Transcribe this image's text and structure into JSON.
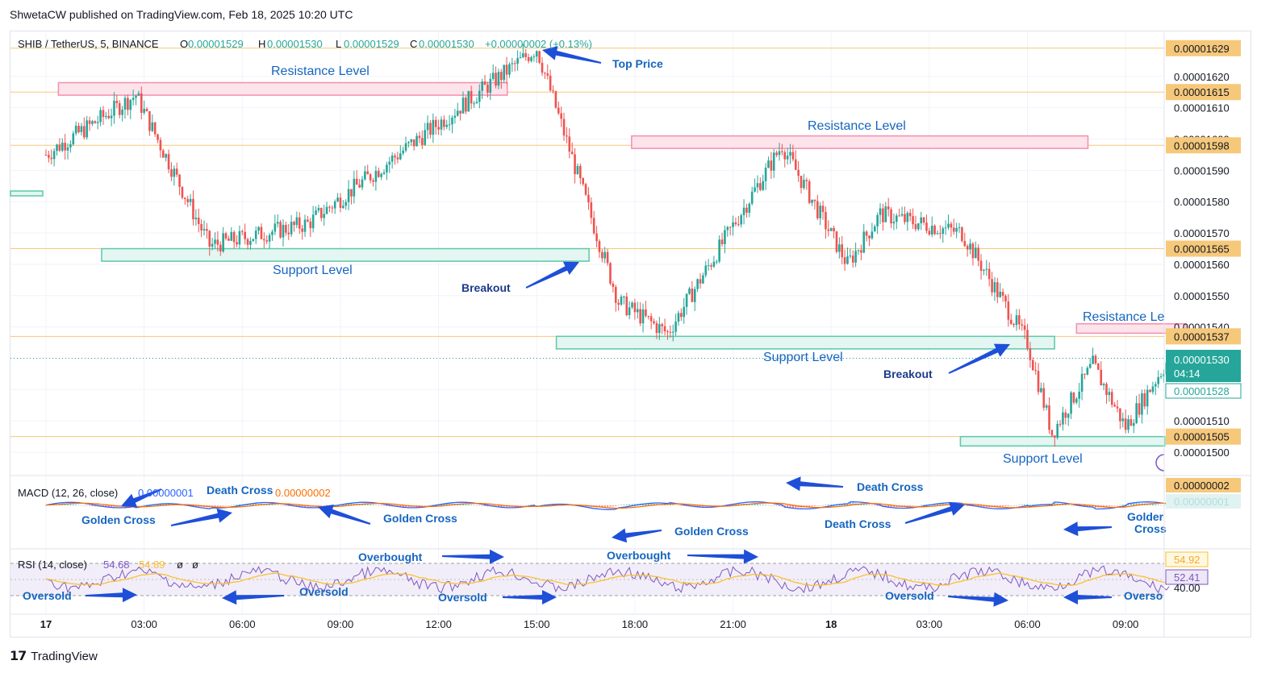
{
  "header": {
    "published": "ShwetaCW published on TradingView.com, Feb 18, 2025 10:20 UTC"
  },
  "footer": {
    "brand": "TradingView"
  },
  "colors": {
    "up": "#26a69a",
    "down": "#ef5350",
    "macd": "#2962ff",
    "signal": "#ff6d00",
    "rsi": "#7e57c2",
    "rsi_ma": "#fbc02d",
    "level": "#f6c87a",
    "annot": "#1e4fd8"
  },
  "legend": {
    "symbol": "SHIB / TetherUS, 5, BINANCE",
    "o_label": "O",
    "o_value": "0.00001529",
    "h_label": "H",
    "h_value": "0.00001530",
    "l_label": "L",
    "l_value": "0.00001529",
    "c_label": "C",
    "c_value": "0.00001530",
    "change": "+0.00000002 (+0.13%)"
  },
  "price_axis": {
    "ticks": [
      "0.00001620",
      "0.00001610",
      "0.00001600",
      "0.00001590",
      "0.00001580",
      "0.00001570",
      "0.00001560",
      "0.00001550",
      "0.00001540",
      "0.00001510",
      "0.00001500"
    ],
    "tags": [
      "0.00001629",
      "0.00001615",
      "0.00001598",
      "0.00001565",
      "0.00001537",
      "0.00001505"
    ],
    "current": "0.00001530",
    "countdown": "04:14",
    "prev": "0.00001528"
  },
  "time_axis": [
    "17",
    "03:00",
    "06:00",
    "09:00",
    "12:00",
    "15:00",
    "18:00",
    "21:00",
    "18",
    "03:00",
    "06:00",
    "09:00"
  ],
  "annotations": {
    "resistance": [
      "Resistance Level",
      "Resistance Level",
      "Resistance Le"
    ],
    "support": [
      "Support Level",
      "Support Level",
      "Support Level"
    ],
    "top_price": "Top Price",
    "breakout": [
      "Breakout",
      "Breakout"
    ],
    "macd_labels": [
      "Golden Cross",
      "Golden Cross",
      "Golden Cross",
      "Death Cross",
      "Death Cross",
      "Death Cross",
      "Golder",
      "Cross"
    ],
    "rsi_labels": [
      "Overbought",
      "Overbought",
      "Oversold",
      "Oversold",
      "Oversold",
      "Oversold",
      "Overso"
    ]
  },
  "macd": {
    "label": "MACD (12, 26, close)",
    "macd_value": "0.00000001",
    "signal_value": "0.00000002",
    "tag1": "0.00000002",
    "tag2": "0.00000001"
  },
  "rsi": {
    "label": "RSI (14, close)",
    "value": "54.68",
    "ma_value": "54.89",
    "extra1": "ø",
    "extra2": "ø",
    "tag1": "54.92",
    "tag2": "52.41",
    "tick": "40.00",
    "upper": 70,
    "lower": 30
  },
  "chart_data": {
    "type": "candlestick",
    "title": "SHIB / TetherUS, 5, BINANCE",
    "ylim": [
      1.495e-05,
      1.633e-05
    ],
    "key_points": [
      {
        "time": "17 00:00",
        "price": 1.595e-05
      },
      {
        "time": "17 02:45",
        "price": 1.614e-05
      },
      {
        "time": "17 05:00",
        "price": 1.566e-05
      },
      {
        "time": "17 08:00",
        "price": 1.573e-05
      },
      {
        "time": "17 15:00",
        "price": 1.629e-05
      },
      {
        "time": "17 17:30",
        "price": 1.548e-05
      },
      {
        "time": "17 19:00",
        "price": 1.538e-05
      },
      {
        "time": "17 22:30",
        "price": 1.598e-05
      },
      {
        "time": "18 00:30",
        "price": 1.56e-05
      },
      {
        "time": "18 01:30",
        "price": 1.576e-05
      },
      {
        "time": "18 04:00",
        "price": 1.57e-05
      },
      {
        "time": "18 06:00",
        "price": 1.535e-05
      },
      {
        "time": "18 06:45",
        "price": 1.506e-05
      },
      {
        "time": "18 08:00",
        "price": 1.528e-05
      },
      {
        "time": "18 09:00",
        "price": 1.508e-05
      },
      {
        "time": "18 10:20",
        "price": 1.53e-05
      }
    ],
    "levels": [
      1.629e-05,
      1.615e-05,
      1.598e-05,
      1.565e-05,
      1.537e-05,
      1.505e-05
    ]
  }
}
